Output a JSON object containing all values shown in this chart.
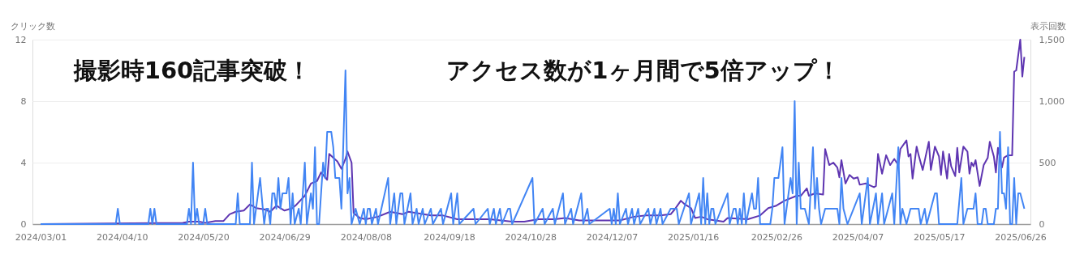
{
  "chart_data": {
    "type": "line",
    "ylabel": "クリック数",
    "y2label": "表示回数",
    "annotations": [
      "撮影時160記事突破！",
      "アクセス数が1ヶ月間で5倍アップ！"
    ],
    "xlim": [
      "2024-02-26",
      "2025-07-01"
    ],
    "xticks": [
      {
        "value": "2024-03-01",
        "label": "2024/03/01"
      },
      {
        "value": "2024-04-10",
        "label": "2024/04/10"
      },
      {
        "value": "2024-05-20",
        "label": "2024/05/20"
      },
      {
        "value": "2024-06-29",
        "label": "2024/06/29"
      },
      {
        "value": "2024-08-08",
        "label": "2024/08/08"
      },
      {
        "value": "2024-09-18",
        "label": "2024/09/18"
      },
      {
        "value": "2024-10-28",
        "label": "2024/10/28"
      },
      {
        "value": "2024-12-07",
        "label": "2024/12/07"
      },
      {
        "value": "2025-01-16",
        "label": "2025/01/16"
      },
      {
        "value": "2025-02-26",
        "label": "2025/02/26"
      },
      {
        "value": "2025-04-07",
        "label": "2025/04/07"
      },
      {
        "value": "2025-05-17",
        "label": "2025/05/17"
      },
      {
        "value": "2025-06-26",
        "label": "2025/06/26"
      }
    ],
    "ylim": [
      0,
      12
    ],
    "yticks": [
      0,
      4,
      8,
      12
    ],
    "y2lim": [
      0,
      1500
    ],
    "y2ticks": [
      0,
      500,
      {
        "value": 1000,
        "label": "1,000"
      },
      {
        "value": 1500,
        "label": "1,500"
      }
    ],
    "grid": "y",
    "marker": "none",
    "line_style": "solid",
    "series": [
      {
        "color": "#4285f4",
        "x": [
          "2024-03-01",
          "2024-04-07",
          "2024-04-08",
          "2024-04-09",
          "2024-04-23",
          "2024-04-24",
          "2024-04-25",
          "2024-04-26",
          "2024-04-27",
          "2024-05-12",
          "2024-05-13",
          "2024-05-14",
          "2024-05-15",
          "2024-05-16",
          "2024-05-17",
          "2024-05-18",
          "2024-05-20",
          "2024-05-21",
          "2024-05-22",
          "2024-06-05",
          "2024-06-06",
          "2024-06-07",
          "2024-06-12",
          "2024-06-13",
          "2024-06-14",
          "2024-06-15",
          "2024-06-17",
          "2024-06-19",
          "2024-06-20",
          "2024-06-21",
          "2024-06-22",
          "2024-06-23",
          "2024-06-24",
          "2024-06-25",
          "2024-06-26",
          "2024-06-27",
          "2024-06-28",
          "2024-06-30",
          "2024-07-01",
          "2024-07-02",
          "2024-07-03",
          "2024-07-04",
          "2024-07-06",
          "2024-07-07",
          "2024-07-09",
          "2024-07-10",
          "2024-07-12",
          "2024-07-13",
          "2024-07-14",
          "2024-07-15",
          "2024-07-16",
          "2024-07-18",
          "2024-07-19",
          "2024-07-20",
          "2024-07-22",
          "2024-07-23",
          "2024-07-24",
          "2024-07-26",
          "2024-07-27",
          "2024-07-29",
          "2024-07-30",
          "2024-07-31",
          "2024-08-01",
          "2024-08-03",
          "2024-08-05",
          "2024-08-07",
          "2024-08-08",
          "2024-08-09",
          "2024-08-10",
          "2024-08-11",
          "2024-08-13",
          "2024-08-14",
          "2024-08-19",
          "2024-08-20",
          "2024-08-22",
          "2024-08-23",
          "2024-08-25",
          "2024-08-26",
          "2024-08-27",
          "2024-08-30",
          "2024-08-31",
          "2024-09-02",
          "2024-09-03",
          "2024-09-05",
          "2024-09-06",
          "2024-09-09",
          "2024-09-10",
          "2024-09-14",
          "2024-09-15",
          "2024-09-19",
          "2024-09-20",
          "2024-09-22",
          "2024-09-23",
          "2024-09-30",
          "2024-10-01",
          "2024-10-07",
          "2024-10-08",
          "2024-10-10",
          "2024-10-11",
          "2024-10-13",
          "2024-10-14",
          "2024-10-17",
          "2024-10-18",
          "2024-10-19",
          "2024-10-29",
          "2024-10-30",
          "2024-11-03",
          "2024-11-04",
          "2024-11-08",
          "2024-11-09",
          "2024-11-13",
          "2024-11-14",
          "2024-11-17",
          "2024-11-18",
          "2024-11-22",
          "2024-11-23",
          "2024-11-25",
          "2024-11-26",
          "2024-12-06",
          "2024-12-07",
          "2024-12-08",
          "2024-12-09",
          "2024-12-10",
          "2024-12-11",
          "2024-12-14",
          "2024-12-15",
          "2024-12-17",
          "2024-12-18",
          "2024-12-20",
          "2024-12-21",
          "2024-12-25",
          "2024-12-26",
          "2024-12-28",
          "2024-12-29",
          "2024-12-31",
          "2025-01-01",
          "2025-01-05",
          "2025-01-06",
          "2025-01-08",
          "2025-01-09",
          "2025-01-14",
          "2025-01-15",
          "2025-01-19",
          "2025-01-20",
          "2025-01-21",
          "2025-01-22",
          "2025-01-23",
          "2025-01-24",
          "2025-01-25",
          "2025-01-26",
          "2025-01-27",
          "2025-02-02",
          "2025-02-03",
          "2025-02-05",
          "2025-02-06",
          "2025-02-07",
          "2025-02-08",
          "2025-02-09",
          "2025-02-10",
          "2025-02-11",
          "2025-02-14",
          "2025-02-15",
          "2025-02-16",
          "2025-02-17",
          "2025-02-18",
          "2025-02-23",
          "2025-02-24",
          "2025-02-25",
          "2025-02-27",
          "2025-03-01",
          "2025-03-02",
          "2025-03-05",
          "2025-03-06",
          "2025-03-07",
          "2025-03-08",
          "2025-03-09",
          "2025-03-10",
          "2025-03-12",
          "2025-03-14",
          "2025-03-16",
          "2025-03-17",
          "2025-03-18",
          "2025-03-19",
          "2025-03-20",
          "2025-03-22",
          "2025-03-23",
          "2025-03-28",
          "2025-03-29",
          "2025-03-30",
          "2025-03-31",
          "2025-04-02",
          "2025-04-08",
          "2025-04-09",
          "2025-04-12",
          "2025-04-13",
          "2025-04-16",
          "2025-04-17",
          "2025-04-19",
          "2025-04-20",
          "2025-04-24",
          "2025-04-25",
          "2025-04-27",
          "2025-04-28",
          "2025-04-29",
          "2025-05-01",
          "2025-05-03",
          "2025-05-07",
          "2025-05-08",
          "2025-05-10",
          "2025-05-11",
          "2025-05-15",
          "2025-05-16",
          "2025-05-17",
          "2025-05-26",
          "2025-05-28",
          "2025-05-29",
          "2025-05-31",
          "2025-06-03",
          "2025-06-04",
          "2025-06-05",
          "2025-06-07",
          "2025-06-08",
          "2025-06-09",
          "2025-06-10",
          "2025-06-13",
          "2025-06-14",
          "2025-06-15",
          "2025-06-16",
          "2025-06-17",
          "2025-06-18",
          "2025-06-19",
          "2025-06-20",
          "2025-06-21",
          "2025-06-22",
          "2025-06-23",
          "2025-06-24",
          "2025-06-25",
          "2025-06-26",
          "2025-06-28"
        ],
        "values": [
          0,
          0,
          1,
          0,
          0,
          1,
          0,
          1,
          0,
          0,
          1,
          0,
          4,
          0,
          1,
          0,
          0,
          1,
          0,
          0,
          2,
          0,
          0,
          4,
          0,
          1,
          3,
          0,
          1,
          1,
          0,
          2,
          2,
          1,
          3,
          1,
          2,
          2,
          3,
          0,
          2,
          0,
          1,
          0,
          4,
          0,
          2,
          1,
          5,
          0,
          0,
          4,
          3,
          6,
          6,
          5,
          3,
          3,
          1,
          10,
          2,
          3,
          0,
          1,
          0,
          1,
          0,
          1,
          1,
          0,
          1,
          0,
          3,
          0,
          2,
          0,
          2,
          2,
          0,
          2,
          0,
          1,
          0,
          1,
          0,
          1,
          0,
          1,
          0,
          2,
          0,
          2,
          0,
          1,
          0,
          1,
          0,
          1,
          0,
          1,
          0,
          1,
          1,
          0,
          3,
          0,
          1,
          0,
          1,
          0,
          2,
          0,
          1,
          0,
          2,
          0,
          1,
          0,
          1,
          0,
          1,
          0,
          2,
          0,
          1,
          0,
          1,
          0,
          1,
          0,
          1,
          0,
          1,
          0,
          1,
          0,
          1,
          1,
          1,
          0,
          2,
          0,
          2,
          0,
          3,
          0,
          2,
          0,
          1,
          1,
          0,
          2,
          0,
          1,
          1,
          0,
          1,
          0,
          2,
          0,
          2,
          1,
          1,
          3,
          0,
          0,
          1,
          3,
          3,
          5,
          0,
          3,
          2,
          8,
          0,
          4,
          1,
          1,
          0,
          5,
          1,
          3,
          1,
          0,
          1,
          1,
          1,
          0,
          3,
          1,
          0,
          2,
          0,
          3,
          0,
          2,
          0,
          2,
          0,
          2,
          0,
          5,
          0,
          1,
          0,
          1,
          1,
          0,
          1,
          0,
          2,
          2,
          0,
          0,
          3,
          0,
          1,
          1,
          2,
          0,
          0,
          1,
          1,
          0,
          0,
          1,
          1,
          6,
          2,
          2,
          1,
          5,
          0,
          0,
          3,
          0,
          2,
          2,
          1
        ]
      },
      {
        "color": "#5e35b1",
        "axis": "y2",
        "x": [
          "2024-03-01",
          "2024-04-03",
          "2024-05-10",
          "2024-05-13",
          "2024-05-18",
          "2024-05-21",
          "2024-05-26",
          "2024-05-30",
          "2024-06-02",
          "2024-06-05",
          "2024-06-09",
          "2024-06-12",
          "2024-06-15",
          "2024-06-19",
          "2024-06-22",
          "2024-06-25",
          "2024-06-29",
          "2024-07-03",
          "2024-07-05",
          "2024-07-09",
          "2024-07-12",
          "2024-07-15",
          "2024-07-17",
          "2024-07-19",
          "2024-07-20",
          "2024-07-21",
          "2024-07-23",
          "2024-07-25",
          "2024-07-27",
          "2024-07-29",
          "2024-07-30",
          "2024-08-01",
          "2024-08-02",
          "2024-08-05",
          "2024-08-08",
          "2024-08-14",
          "2024-08-20",
          "2024-08-26",
          "2024-08-29",
          "2024-09-09",
          "2024-09-15",
          "2024-09-22",
          "2024-10-01",
          "2024-10-08",
          "2024-10-19",
          "2024-10-25",
          "2024-11-01",
          "2024-11-09",
          "2024-11-14",
          "2024-11-21",
          "2024-12-04",
          "2024-12-11",
          "2024-12-18",
          "2024-12-24",
          "2024-12-31",
          "2025-01-05",
          "2025-01-07",
          "2025-01-10",
          "2025-01-12",
          "2025-01-15",
          "2025-01-17",
          "2025-01-20",
          "2025-01-23",
          "2025-01-31",
          "2025-02-02",
          "2025-02-12",
          "2025-02-18",
          "2025-02-22",
          "2025-02-26",
          "2025-03-02",
          "2025-03-08",
          "2025-03-10",
          "2025-03-13",
          "2025-03-14",
          "2025-03-17",
          "2025-03-21",
          "2025-03-22",
          "2025-03-24",
          "2025-03-26",
          "2025-03-28",
          "2025-03-29",
          "2025-03-30",
          "2025-04-01",
          "2025-04-03",
          "2025-04-05",
          "2025-04-07",
          "2025-04-08",
          "2025-04-11",
          "2025-04-15",
          "2025-04-16",
          "2025-04-17",
          "2025-04-19",
          "2025-04-21",
          "2025-04-23",
          "2025-04-25",
          "2025-04-27",
          "2025-04-28",
          "2025-05-01",
          "2025-05-02",
          "2025-05-03",
          "2025-05-04",
          "2025-05-06",
          "2025-05-07",
          "2025-05-09",
          "2025-05-12",
          "2025-05-13",
          "2025-05-15",
          "2025-05-17",
          "2025-05-18",
          "2025-05-19",
          "2025-05-21",
          "2025-05-22",
          "2025-05-23",
          "2025-05-25",
          "2025-05-26",
          "2025-05-27",
          "2025-05-29",
          "2025-05-31",
          "2025-06-01",
          "2025-06-02",
          "2025-06-03",
          "2025-06-04",
          "2025-06-06",
          "2025-06-08",
          "2025-06-10",
          "2025-06-11",
          "2025-06-13",
          "2025-06-14",
          "2025-06-15",
          "2025-06-17",
          "2025-06-18",
          "2025-06-20",
          "2025-06-22",
          "2025-06-23",
          "2025-06-24",
          "2025-06-26",
          "2025-06-27",
          "2025-06-28"
        ],
        "values": [
          0,
          5,
          10,
          20,
          20,
          10,
          25,
          25,
          80,
          100,
          110,
          160,
          130,
          120,
          100,
          150,
          110,
          130,
          160,
          230,
          330,
          350,
          420,
          380,
          360,
          570,
          540,
          510,
          450,
          530,
          590,
          500,
          90,
          50,
          40,
          60,
          100,
          80,
          100,
          70,
          70,
          40,
          40,
          40,
          20,
          20,
          40,
          40,
          50,
          30,
          30,
          30,
          60,
          70,
          70,
          80,
          120,
          190,
          160,
          130,
          50,
          60,
          40,
          20,
          50,
          40,
          70,
          130,
          150,
          190,
          230,
          230,
          290,
          230,
          250,
          240,
          610,
          480,
          500,
          460,
          380,
          520,
          330,
          400,
          370,
          380,
          320,
          330,
          300,
          310,
          570,
          410,
          560,
          480,
          530,
          480,
          610,
          680,
          550,
          570,
          370,
          630,
          560,
          440,
          670,
          440,
          630,
          550,
          400,
          590,
          370,
          570,
          470,
          390,
          620,
          420,
          630,
          590,
          410,
          500,
          470,
          520,
          310,
          480,
          540,
          670,
          550,
          420,
          620,
          460,
          540,
          560,
          560,
          1240,
          1250,
          1500,
          1200,
          1360
        ]
      }
    ]
  }
}
